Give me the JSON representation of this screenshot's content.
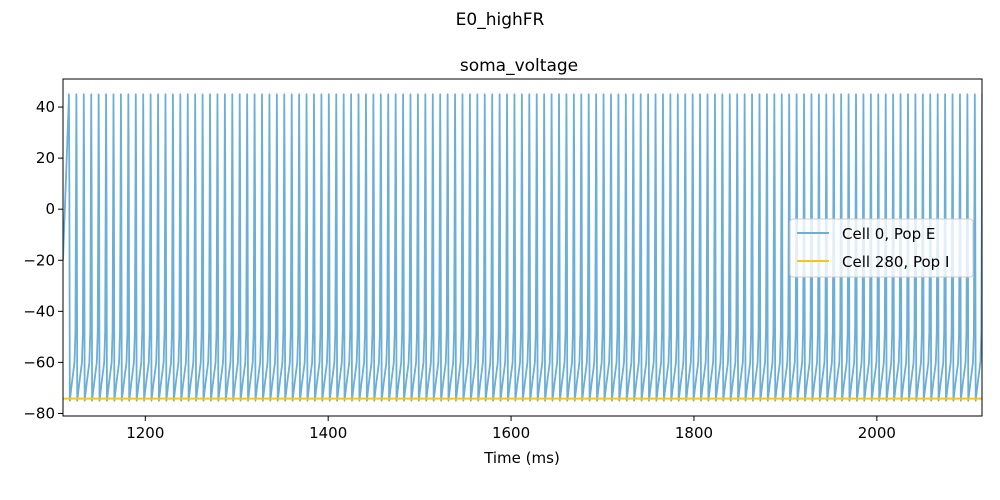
{
  "chart_data": {
    "type": "line",
    "suptitle": "E0_highFR",
    "title": "soma_voltage",
    "xlabel": "Time (ms)",
    "ylabel": "",
    "xlim": [
      1110,
      2115
    ],
    "ylim": [
      -81,
      51
    ],
    "xticks": [
      1200,
      1400,
      1600,
      1800,
      2000
    ],
    "xtick_labels": [
      "1200",
      "1400",
      "1600",
      "1800",
      "2000"
    ],
    "yticks": [
      -80,
      -60,
      -40,
      -20,
      0,
      20,
      40
    ],
    "ytick_labels": [
      "−80",
      "−60",
      "−40",
      "−20",
      "0",
      "20",
      "40"
    ],
    "grid": false,
    "legend_position": "center-right",
    "series": [
      {
        "name": "Cell 0, Pop E",
        "color": "#6baed6",
        "pattern": "periodic-spiking",
        "t_start": 1110,
        "t_end": 2115,
        "first_spike_time": 1116.5,
        "spike_interval": 8.12,
        "spike_peak": 45,
        "trough": -75
      },
      {
        "name": "Cell 280, Pop I",
        "color": "#f5c518",
        "pattern": "flat",
        "value": -74.2
      }
    ]
  }
}
